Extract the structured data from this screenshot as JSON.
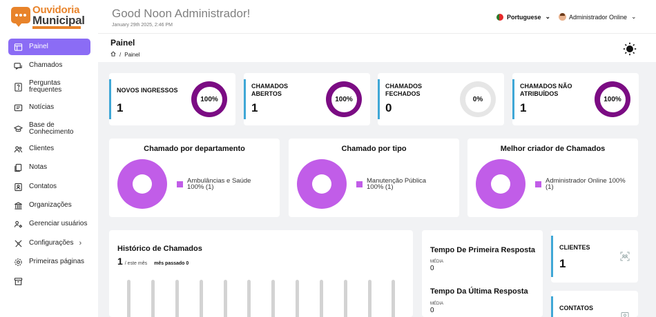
{
  "brand": {
    "line1": "Ouvidoria",
    "line2": "Municipal"
  },
  "header": {
    "greeting": "Good Noon Administrador!",
    "date": "January 29th 2025, 2:46 PM",
    "language": "Portuguese",
    "user": "Administrador Online"
  },
  "sidebar": {
    "items": [
      {
        "label": "Painel",
        "icon": "dashboard-icon",
        "active": true
      },
      {
        "label": "Chamados",
        "icon": "tickets-icon"
      },
      {
        "label": "Perguntas frequentes",
        "icon": "faq-icon"
      },
      {
        "label": "Notícias",
        "icon": "news-icon"
      },
      {
        "label": "Base de Conhecimento",
        "icon": "graduation-cap-icon"
      },
      {
        "label": "Clientes",
        "icon": "users-icon"
      },
      {
        "label": "Notas",
        "icon": "notes-icon"
      },
      {
        "label": "Contatos",
        "icon": "contact-card-icon"
      },
      {
        "label": "Organizações",
        "icon": "building-icon"
      },
      {
        "label": "Gerenciar usuários",
        "icon": "manage-users-icon"
      },
      {
        "label": "Configurações",
        "icon": "gear-icon"
      },
      {
        "label": "Primeiras páginas",
        "icon": "settings-icon"
      },
      {
        "label": "",
        "icon": "archive-icon"
      }
    ]
  },
  "page": {
    "title": "Painel",
    "breadcrumb": {
      "separator": "/",
      "current": "Painel"
    }
  },
  "stats": [
    {
      "title": "NOVOS INGRESSOS",
      "value": "1",
      "percent_label": "100%",
      "percent": 100
    },
    {
      "title": "CHAMADOS ABERTOS",
      "value": "1",
      "percent_label": "100%",
      "percent": 100
    },
    {
      "title": "CHAMADOS FECHADOS",
      "value": "0",
      "percent_label": "0%",
      "percent": 0
    },
    {
      "title": "CHAMADOS NÃO ATRIBUÍDOS",
      "value": "1",
      "percent_label": "100%",
      "percent": 100
    }
  ],
  "pies": [
    {
      "title": "Chamado por departamento",
      "legend_label": "Ambulâncias e Saúde",
      "legend_value": "100% (1)"
    },
    {
      "title": "Chamado por tipo",
      "legend_label": "Manutenção Pública",
      "legend_value": "100% (1)"
    },
    {
      "title": "Melhor criador de Chamados",
      "legend_label": "Administrador Online 100%",
      "legend_value": "(1)"
    }
  ],
  "history": {
    "title": "Histórico de Chamados",
    "count": "1",
    "this_month": "/ este mês",
    "last_month": "mês passado 0"
  },
  "response": {
    "first_title": "Tempo De Primeira Resposta",
    "first_label": "MÉDIA",
    "first_value": "0",
    "last_title": "Tempo Da Última Resposta",
    "last_label": "MÉDIA",
    "last_value": "0"
  },
  "mini": [
    {
      "title": "CLIENTES",
      "value": "1"
    },
    {
      "title": "CONTATOS",
      "value": ""
    }
  ],
  "colors": {
    "accent": "#8b6cf5",
    "ring": "#7b0c83",
    "ring_empty": "#e6e6e6",
    "pie": "#c15de8",
    "stat_accent": "#3fa7d6",
    "logo": "#e8832a"
  }
}
